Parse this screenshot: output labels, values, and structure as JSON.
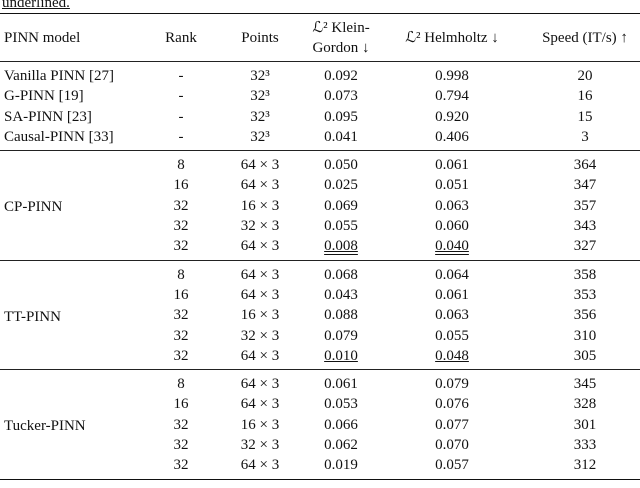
{
  "caption_fragment": "underlined.",
  "table": {
    "header": [
      "PINN model",
      "Rank",
      "Points",
      "ℒ² Klein-Gordon ↓",
      "ℒ² Helmholtz ↓",
      "Speed (IT/s) ↑"
    ],
    "groups": [
      {
        "rows": [
          [
            "Vanilla PINN [27]",
            "-",
            "32³",
            "0.092",
            "0.998",
            "20"
          ],
          [
            "G-PINN [19]",
            "-",
            "32³",
            "0.073",
            "0.794",
            "16"
          ],
          [
            "SA-PINN [23]",
            "-",
            "32³",
            "0.095",
            "0.920",
            "15"
          ],
          [
            "Causal-PINN [33]",
            "-",
            "32³",
            "0.041",
            "0.406",
            "3"
          ]
        ]
      },
      {
        "model": "CP-PINN",
        "rows": [
          [
            "8",
            "64 × 3",
            "0.050",
            "0.061",
            "364"
          ],
          [
            "16",
            "64 × 3",
            "0.025",
            "0.051",
            "347"
          ],
          [
            "32",
            "16 × 3",
            "0.069",
            "0.063",
            "357"
          ],
          [
            "32",
            "32 × 3",
            "0.055",
            "0.060",
            "343"
          ],
          [
            "32",
            "64 × 3",
            {
              "text": "0.008",
              "underline": "double"
            },
            {
              "text": "0.040",
              "underline": "double"
            },
            "327"
          ]
        ]
      },
      {
        "model": "TT-PINN",
        "rows": [
          [
            "8",
            "64 × 3",
            "0.068",
            "0.064",
            "358"
          ],
          [
            "16",
            "64 × 3",
            "0.043",
            "0.061",
            "353"
          ],
          [
            "32",
            "16 × 3",
            "0.088",
            "0.063",
            "356"
          ],
          [
            "32",
            "32 × 3",
            "0.079",
            "0.055",
            "310"
          ],
          [
            "32",
            "64 × 3",
            {
              "text": "0.010",
              "underline": "single"
            },
            {
              "text": "0.048",
              "underline": "single"
            },
            "305"
          ]
        ]
      },
      {
        "model": "Tucker-PINN",
        "rows": [
          [
            "8",
            "64 × 3",
            "0.061",
            "0.079",
            "345"
          ],
          [
            "16",
            "64 × 3",
            "0.053",
            "0.076",
            "328"
          ],
          [
            "32",
            "16 × 3",
            "0.066",
            "0.077",
            "301"
          ],
          [
            "32",
            "32 × 3",
            "0.062",
            "0.070",
            "333"
          ],
          [
            "32",
            "64 × 3",
            "0.019",
            "0.057",
            "312"
          ]
        ]
      }
    ]
  }
}
